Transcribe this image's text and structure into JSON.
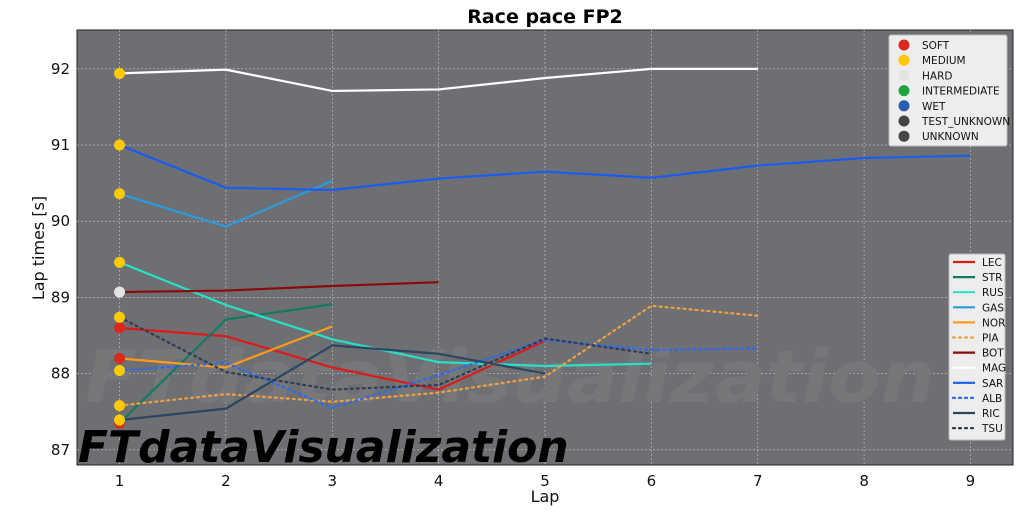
{
  "chart_data": {
    "type": "line",
    "title": "Race pace FP2",
    "xlabel": "Lap",
    "ylabel": "Lap times [s]",
    "xlim": [
      0.6,
      9.4
    ],
    "ylim": [
      86.8,
      92.51
    ],
    "xticks": [
      1,
      2,
      3,
      4,
      5,
      6,
      7,
      8,
      9
    ],
    "yticks": [
      87,
      88,
      89,
      90,
      91,
      92
    ],
    "grid": true,
    "background": "#6e6f73",
    "watermark": "FTdataVisualization",
    "compound_legend": {
      "placement": "top-right",
      "entries": [
        {
          "name": "SOFT",
          "color": "#da291c"
        },
        {
          "name": "MEDIUM",
          "color": "#ffc906"
        },
        {
          "name": "HARD",
          "color": "#e4e4e4"
        },
        {
          "name": "INTERMEDIATE",
          "color": "#1ea23b"
        },
        {
          "name": "WET",
          "color": "#2a5fb0"
        },
        {
          "name": "TEST_UNKNOWN",
          "color": "#434649"
        },
        {
          "name": "UNKNOWN",
          "color": "#434649"
        }
      ]
    },
    "driver_legend_placement": "bottom-right",
    "series": [
      {
        "name": "LEC",
        "color": "#dc1a1a",
        "dash": false,
        "start_compound": "SOFT",
        "x": [
          1,
          2,
          3,
          4,
          5
        ],
        "y": [
          88.6,
          88.49,
          88.08,
          87.79,
          88.43
        ]
      },
      {
        "name": "STR",
        "color": "#127a63",
        "dash": false,
        "start_compound": "SOFT",
        "x": [
          1,
          2,
          3
        ],
        "y": [
          87.35,
          88.71,
          88.91
        ]
      },
      {
        "name": "RUS",
        "color": "#27e0c8",
        "dash": false,
        "start_compound": "MEDIUM",
        "x": [
          1,
          2,
          3,
          4,
          5,
          6
        ],
        "y": [
          89.46,
          88.9,
          88.45,
          88.15,
          88.1,
          88.13
        ]
      },
      {
        "name": "GAS",
        "color": "#2b9be0",
        "dash": false,
        "start_compound": "MEDIUM",
        "x": [
          1,
          2,
          3
        ],
        "y": [
          90.36,
          89.93,
          90.53
        ]
      },
      {
        "name": "NOR",
        "color": "#ff9a1a",
        "dash": false,
        "start_compound": "SOFT",
        "x": [
          1,
          2,
          3
        ],
        "y": [
          88.2,
          88.08,
          88.62
        ]
      },
      {
        "name": "PIA",
        "color": "#f0a040",
        "dash": true,
        "start_compound": "MEDIUM",
        "x": [
          1,
          2,
          3,
          4,
          5,
          6,
          7
        ],
        "y": [
          87.58,
          87.73,
          87.63,
          87.75,
          87.96,
          88.89,
          88.76
        ]
      },
      {
        "name": "BOT",
        "color": "#8c0a0a",
        "dash": false,
        "start_compound": "HARD",
        "x": [
          1,
          2,
          3,
          4
        ],
        "y": [
          89.07,
          89.09,
          89.15,
          89.2
        ]
      },
      {
        "name": "MAG",
        "color": "#ffffff",
        "dash": false,
        "start_compound": "MEDIUM",
        "x": [
          1,
          2,
          3,
          4,
          5,
          6,
          7
        ],
        "y": [
          91.94,
          91.99,
          91.71,
          91.73,
          91.88,
          92.0,
          92.0
        ]
      },
      {
        "name": "SAR",
        "color": "#1a5cf0",
        "dash": false,
        "start_compound": "MEDIUM",
        "x": [
          1,
          2,
          3,
          4,
          5,
          6,
          7,
          8,
          9
        ],
        "y": [
          91.0,
          90.44,
          90.41,
          90.56,
          90.65,
          90.57,
          90.73,
          90.83,
          90.86
        ]
      },
      {
        "name": "ALB",
        "color": "#2a6af0",
        "dash": true,
        "start_compound": "MEDIUM",
        "x": [
          1,
          2,
          3,
          4,
          5,
          6,
          7
        ],
        "y": [
          88.04,
          88.14,
          87.55,
          87.98,
          88.44,
          88.31,
          88.33
        ]
      },
      {
        "name": "RIC",
        "color": "#2c4562",
        "dash": false,
        "start_compound": "MEDIUM",
        "x": [
          1,
          2,
          3,
          4,
          5
        ],
        "y": [
          87.39,
          87.54,
          88.37,
          88.26,
          88.0
        ]
      },
      {
        "name": "TSU",
        "color": "#2e3d55",
        "dash": true,
        "start_compound": "MEDIUM",
        "x": [
          1,
          2,
          3,
          4,
          5,
          6
        ],
        "y": [
          88.74,
          88.02,
          87.79,
          87.85,
          88.46,
          88.26
        ]
      }
    ]
  }
}
